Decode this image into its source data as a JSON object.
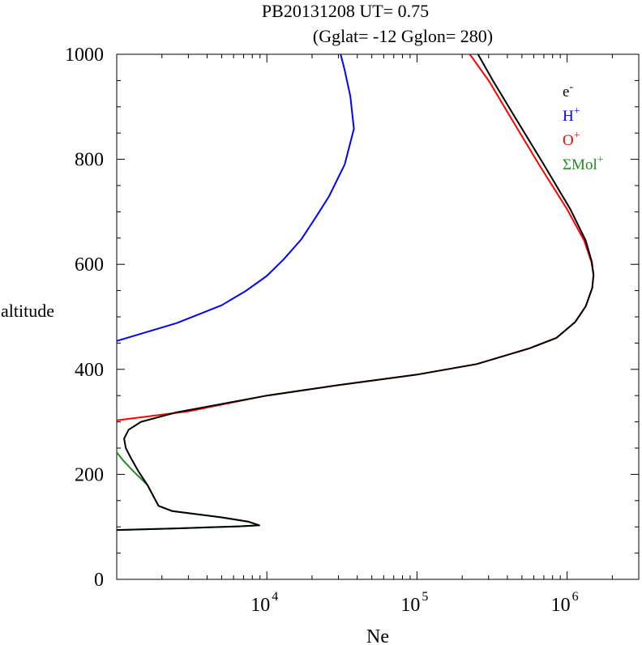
{
  "title_line1": "PB20131208   UT=  0.75",
  "title_line2": "(Gglat= -12   Gglon=  280)",
  "chart_data": {
    "type": "line",
    "xlabel": "Ne",
    "ylabel": "altitude",
    "xscale": "log",
    "xlim": [
      1000,
      3000000
    ],
    "ylim": [
      0,
      1000
    ],
    "y_ticks": [
      0,
      200,
      400,
      600,
      800,
      1000
    ],
    "x_ticks": [
      {
        "value": 10000,
        "base": "10",
        "exp": "4"
      },
      {
        "value": 100000,
        "base": "10",
        "exp": "5"
      },
      {
        "value": 1000000,
        "base": "10",
        "exp": "6"
      }
    ],
    "legend_position": "top-right",
    "legend": [
      {
        "base": "e",
        "sup": "-",
        "color": "#000000"
      },
      {
        "base": "H",
        "sup": "+",
        "color": "#0000ff"
      },
      {
        "base": "O",
        "sup": "+",
        "color": "#ff0000"
      },
      {
        "base": "ΣMol",
        "sup": "+",
        "color": "#228b22"
      }
    ],
    "series": [
      {
        "color": "#0000ff",
        "points": [
          [
            1000,
            454
          ],
          [
            2500,
            488
          ],
          [
            5000,
            522
          ],
          [
            7300,
            550
          ],
          [
            10000,
            578
          ],
          [
            13000,
            610
          ],
          [
            17000,
            648
          ],
          [
            21000,
            688
          ],
          [
            26000,
            730
          ],
          [
            33000,
            790
          ],
          [
            38000,
            858
          ],
          [
            36000,
            920
          ],
          [
            33000,
            970
          ],
          [
            31000,
            1000
          ]
        ]
      },
      {
        "color": "#228b22",
        "points": [
          [
            1000,
            242
          ],
          [
            1100,
            227
          ],
          [
            1300,
            205
          ],
          [
            1600,
            180
          ],
          [
            1900,
            140
          ],
          [
            2350,
            130
          ],
          [
            5000,
            118
          ],
          [
            7500,
            110
          ],
          [
            8900,
            103
          ],
          [
            6500,
            101
          ],
          [
            2500,
            97
          ],
          [
            1000,
            94
          ]
        ]
      },
      {
        "color": "#ff0000",
        "points": [
          [
            1000,
            303
          ],
          [
            3000,
            320
          ],
          [
            10000,
            350
          ],
          [
            30000,
            370
          ],
          [
            100000,
            390
          ],
          [
            250000,
            410
          ],
          [
            560000,
            440
          ],
          [
            850000,
            460
          ],
          [
            1130000,
            490
          ],
          [
            1330000,
            520
          ],
          [
            1470000,
            555
          ],
          [
            1500000,
            580
          ],
          [
            1450000,
            605
          ],
          [
            1300000,
            645
          ],
          [
            1000000,
            705
          ],
          [
            650000,
            790
          ],
          [
            420000,
            880
          ],
          [
            300000,
            950
          ],
          [
            225000,
            1000
          ]
        ]
      },
      {
        "color": "#000000",
        "points": [
          [
            1000,
            94
          ],
          [
            2500,
            97
          ],
          [
            6500,
            101
          ],
          [
            8900,
            103
          ],
          [
            7500,
            110
          ],
          [
            5000,
            118
          ],
          [
            2350,
            130
          ],
          [
            1900,
            140
          ],
          [
            1600,
            180
          ],
          [
            1400,
            205
          ],
          [
            1250,
            230
          ],
          [
            1150,
            250
          ],
          [
            1120,
            268
          ],
          [
            1200,
            285
          ],
          [
            1450,
            300
          ],
          [
            2500,
            318
          ],
          [
            10000,
            350
          ],
          [
            30000,
            370
          ],
          [
            100000,
            390
          ],
          [
            250000,
            410
          ],
          [
            560000,
            440
          ],
          [
            850000,
            460
          ],
          [
            1130000,
            490
          ],
          [
            1330000,
            520
          ],
          [
            1470000,
            555
          ],
          [
            1500000,
            580
          ],
          [
            1460000,
            605
          ],
          [
            1330000,
            645
          ],
          [
            1050000,
            705
          ],
          [
            700000,
            790
          ],
          [
            450000,
            880
          ],
          [
            320000,
            950
          ],
          [
            255000,
            1000
          ]
        ]
      }
    ]
  }
}
